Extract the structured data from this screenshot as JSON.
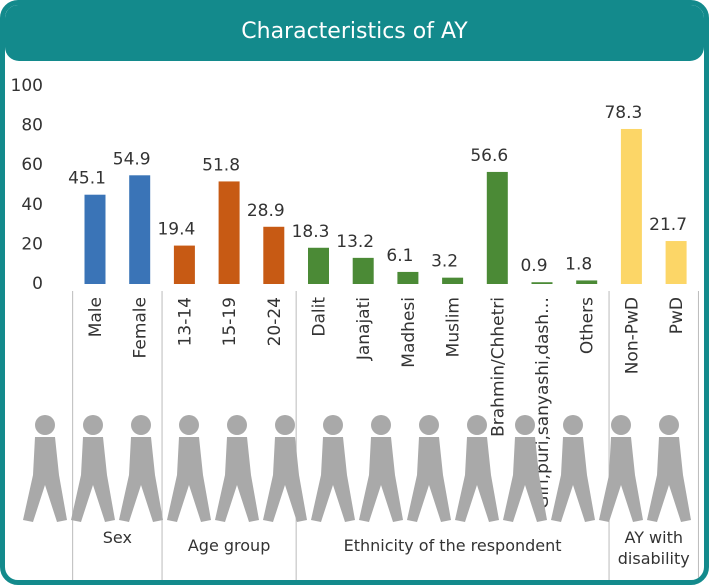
{
  "chart_data": {
    "type": "bar",
    "title": "Characteristics of AY",
    "ylim": [
      0,
      100
    ],
    "yticks": [
      0,
      20,
      40,
      60,
      80,
      100
    ],
    "groups": [
      {
        "name": "Sex",
        "color": "#3a74b7",
        "categories": [
          "Male",
          "Female"
        ],
        "values": [
          45.1,
          54.9
        ]
      },
      {
        "name": "Age group",
        "color": "#c75a14",
        "categories": [
          "13-14",
          "15-19",
          "20-24"
        ],
        "values": [
          19.4,
          51.8,
          28.9
        ]
      },
      {
        "name": "Ethnicity of the respondent",
        "color": "#4b8a36",
        "categories": [
          "Dalit",
          "Janajati",
          "Madhesi",
          "Muslim",
          "Brahmin/Chhetri",
          "Giri,puri,sanyashi,dash…",
          "Others"
        ],
        "values": [
          18.3,
          13.2,
          6.1,
          3.2,
          56.6,
          0.9,
          1.8
        ]
      },
      {
        "name": "AY with disability",
        "color": "#fcd667",
        "categories": [
          "Non-PwD",
          "PwD"
        ],
        "values": [
          78.3,
          21.7
        ]
      }
    ]
  }
}
